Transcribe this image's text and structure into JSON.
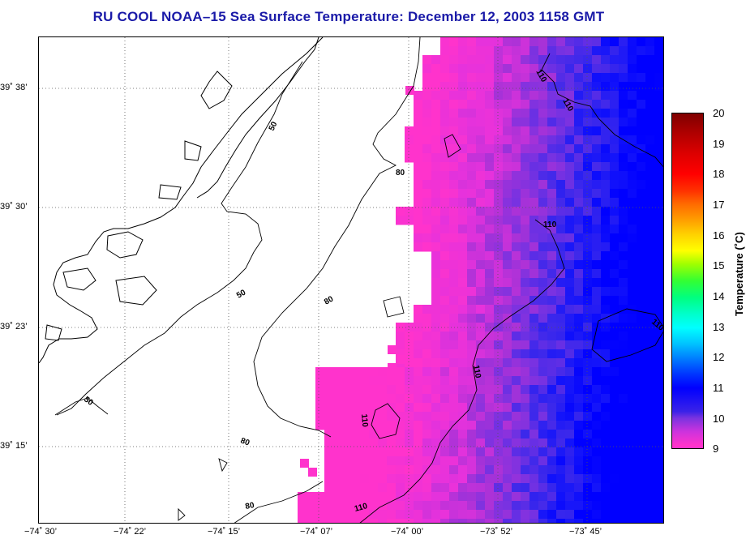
{
  "title": "RU COOL  NOAA–15  Sea Surface Temperature:  December 12, 2003 1158 GMT",
  "map": {
    "latitude_labels": [
      "39˚ 38’",
      "39˚ 30’",
      "39˚ 23’",
      "39˚ 15’"
    ],
    "longitude_labels": [
      "−74˚ 30’",
      "−74˚ 22’",
      "−74˚ 15’",
      "−74˚ 07’",
      "−74˚ 00’",
      "−73˚ 52’",
      "−73˚ 45’"
    ],
    "contour_labels": [
      "50",
      "50",
      "50",
      "80",
      "80",
      "80",
      "80",
      "110",
      "110",
      "110",
      "110",
      "110",
      "110"
    ]
  },
  "colorbar": {
    "ticks": [
      "20",
      "19",
      "18",
      "17",
      "16",
      "15",
      "14",
      "13",
      "12",
      "11",
      "10",
      "9"
    ],
    "label": "Temperature (˚C)",
    "min": 9,
    "max": 20
  },
  "colors": {
    "title": "#1a1aa8",
    "sst_warm_pink": "#ff33cc",
    "sst_purple": "#8833dd",
    "sst_blue": "#0000ff"
  }
}
